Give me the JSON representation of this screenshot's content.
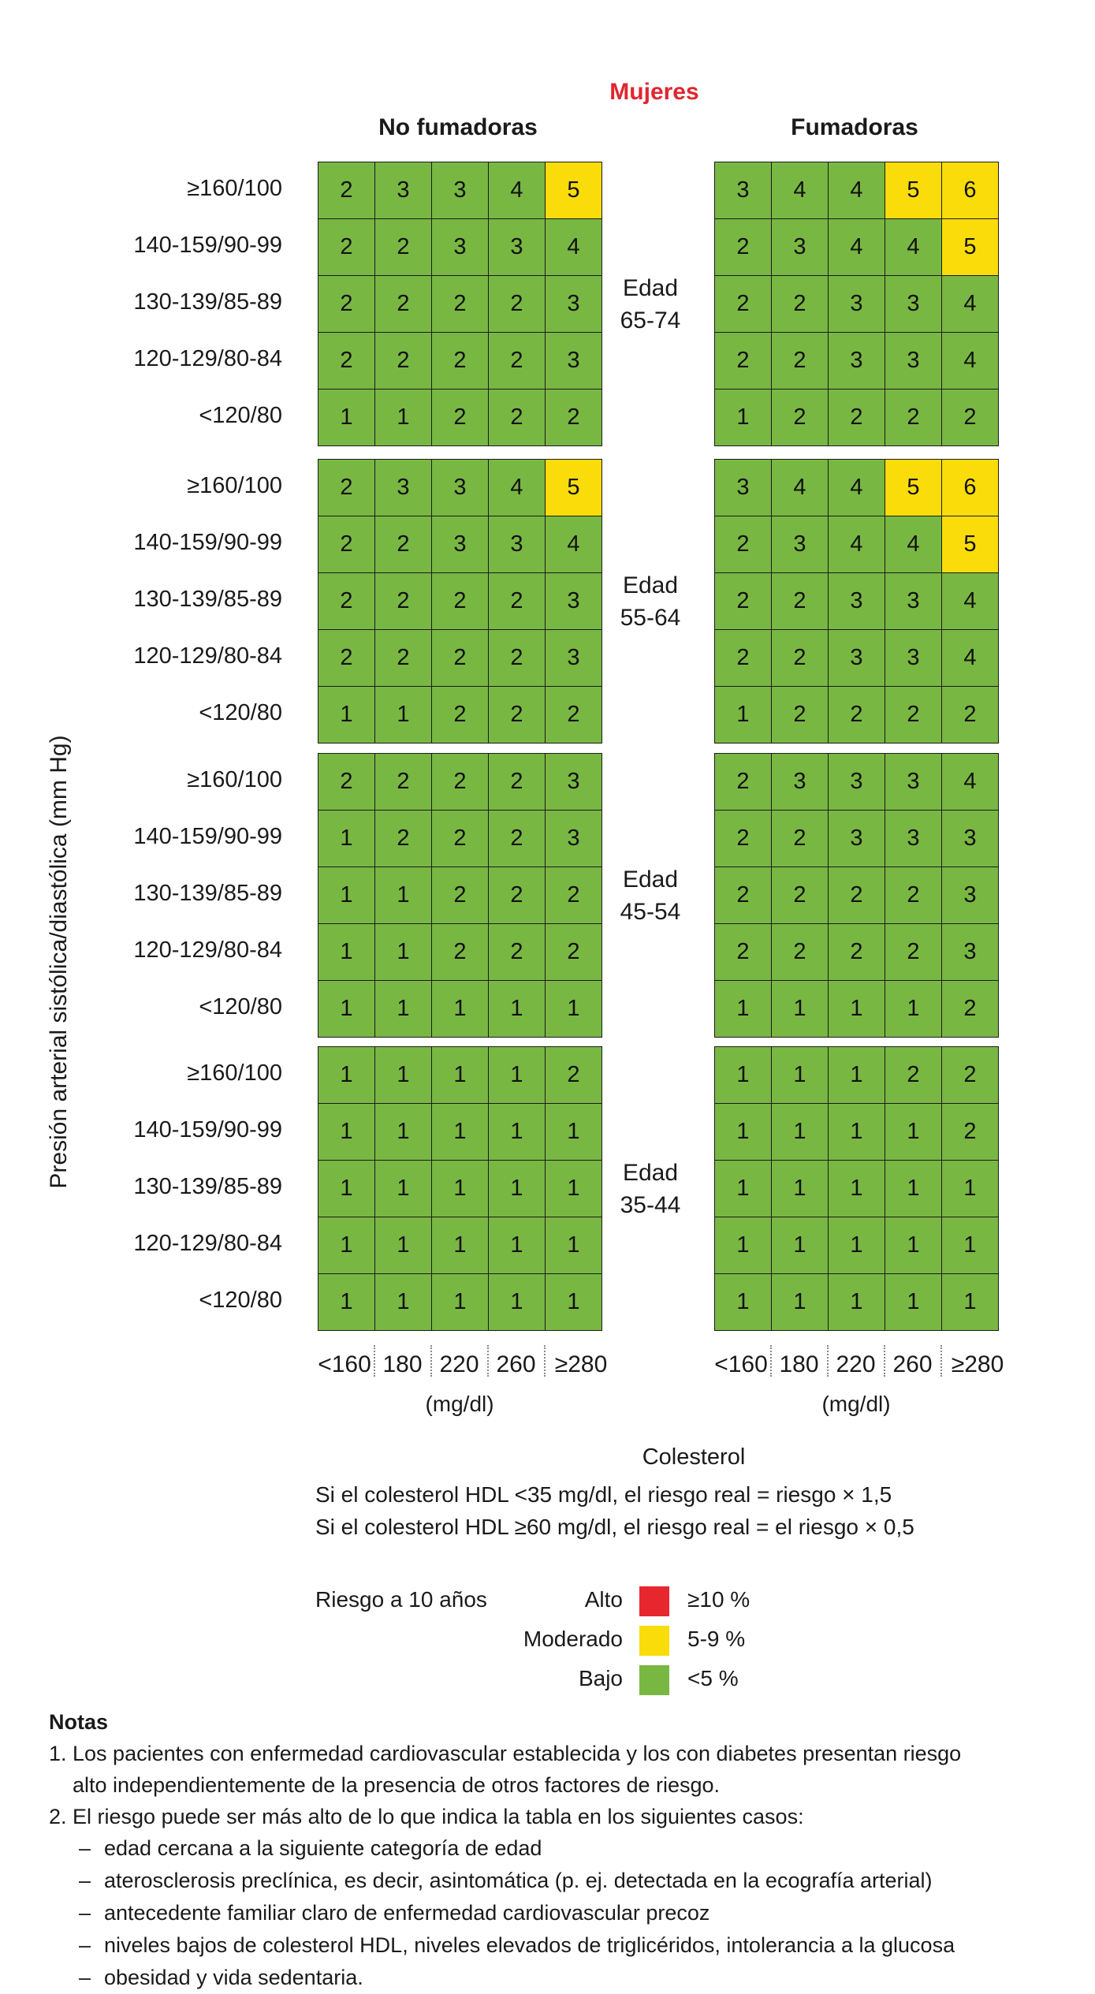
{
  "title": "Mujeres",
  "y_axis_label": "Presión arterial sistólica/diastólica (mm Hg)",
  "groups": {
    "left": "No fumadoras",
    "right": "Fumadoras"
  },
  "chart_data": {
    "type": "heatmap",
    "title": "Mujeres",
    "ylabel": "Presión arterial sistólica/diastólica (mm Hg)",
    "xlabel": "Colesterol",
    "x_unit": "(mg/dl)",
    "x_categories": [
      "<160",
      "180",
      "220",
      "260",
      "≥280"
    ],
    "y_categories": [
      "≥160/100",
      "140-159/90-99",
      "130-139/85-89",
      "120-129/80-84",
      "<120/80"
    ],
    "panels": [
      {
        "age": [
          "Edad",
          "65-74"
        ],
        "no_fumadoras": [
          [
            2,
            3,
            3,
            4,
            5
          ],
          [
            2,
            2,
            3,
            3,
            4
          ],
          [
            2,
            2,
            2,
            2,
            3
          ],
          [
            2,
            2,
            2,
            2,
            3
          ],
          [
            1,
            1,
            2,
            2,
            2
          ]
        ],
        "fumadoras": [
          [
            3,
            4,
            4,
            5,
            6
          ],
          [
            2,
            3,
            4,
            4,
            5
          ],
          [
            2,
            2,
            3,
            3,
            4
          ],
          [
            2,
            2,
            3,
            3,
            4
          ],
          [
            1,
            2,
            2,
            2,
            2
          ]
        ]
      },
      {
        "age": [
          "Edad",
          "55-64"
        ],
        "no_fumadoras": [
          [
            2,
            3,
            3,
            4,
            5
          ],
          [
            2,
            2,
            3,
            3,
            4
          ],
          [
            2,
            2,
            2,
            2,
            3
          ],
          [
            2,
            2,
            2,
            2,
            3
          ],
          [
            1,
            1,
            2,
            2,
            2
          ]
        ],
        "fumadoras": [
          [
            3,
            4,
            4,
            5,
            6
          ],
          [
            2,
            3,
            4,
            4,
            5
          ],
          [
            2,
            2,
            3,
            3,
            4
          ],
          [
            2,
            2,
            3,
            3,
            4
          ],
          [
            1,
            2,
            2,
            2,
            2
          ]
        ]
      },
      {
        "age": [
          "Edad",
          "45-54"
        ],
        "no_fumadoras": [
          [
            2,
            2,
            2,
            2,
            3
          ],
          [
            1,
            2,
            2,
            2,
            3
          ],
          [
            1,
            1,
            2,
            2,
            2
          ],
          [
            1,
            1,
            2,
            2,
            2
          ],
          [
            1,
            1,
            1,
            1,
            1
          ]
        ],
        "fumadoras": [
          [
            2,
            3,
            3,
            3,
            4
          ],
          [
            2,
            2,
            3,
            3,
            3
          ],
          [
            2,
            2,
            2,
            2,
            3
          ],
          [
            2,
            2,
            2,
            2,
            3
          ],
          [
            1,
            1,
            1,
            1,
            2
          ]
        ]
      },
      {
        "age": [
          "Edad",
          "35-44"
        ],
        "no_fumadoras": [
          [
            1,
            1,
            1,
            1,
            2
          ],
          [
            1,
            1,
            1,
            1,
            1
          ],
          [
            1,
            1,
            1,
            1,
            1
          ],
          [
            1,
            1,
            1,
            1,
            1
          ],
          [
            1,
            1,
            1,
            1,
            1
          ]
        ],
        "fumadoras": [
          [
            1,
            1,
            1,
            2,
            2
          ],
          [
            1,
            1,
            1,
            1,
            2
          ],
          [
            1,
            1,
            1,
            1,
            1
          ],
          [
            1,
            1,
            1,
            1,
            1
          ],
          [
            1,
            1,
            1,
            1,
            1
          ]
        ]
      }
    ],
    "color_scale": {
      "high_min": 10,
      "moderate": [
        5,
        9
      ],
      "low_max": 4
    }
  },
  "hdl_notes": [
    "Si el colesterol HDL <35 mg/dl, el riesgo real = riesgo × 1,5",
    "Si el colesterol HDL ≥60 mg/dl, el riesgo real = el riesgo × 0,5"
  ],
  "legend": {
    "title": "Riesgo a 10 años",
    "items": [
      {
        "label": "Alto",
        "range": "≥10 %",
        "color": "#e8262d"
      },
      {
        "label": "Moderado",
        "range": "5-9 %",
        "color": "#fadc0a"
      },
      {
        "label": "Bajo",
        "range": "<5 %",
        "color": "#79b743"
      }
    ]
  },
  "notes": {
    "heading": "Notas",
    "items": [
      "1. Los pacientes con enfermedad cardiovascular establecida y los con diabetes presentan riesgo",
      "alto independientemente de la presencia de otros factores de riesgo.",
      "2. El riesgo puede ser más alto de lo que indica la tabla en los siguientes casos:"
    ],
    "bullets": [
      "edad cercana a la siguiente categoría de edad",
      "aterosclerosis preclínica, es decir, asintomática (p. ej. detectada en la ecografía arterial)",
      "antecedente familiar claro de enfermedad cardiovascular precoz",
      "niveles bajos de colesterol HDL, niveles elevados de triglicéridos, intolerancia a la glucosa",
      "obesidad y vida sedentaria."
    ]
  }
}
